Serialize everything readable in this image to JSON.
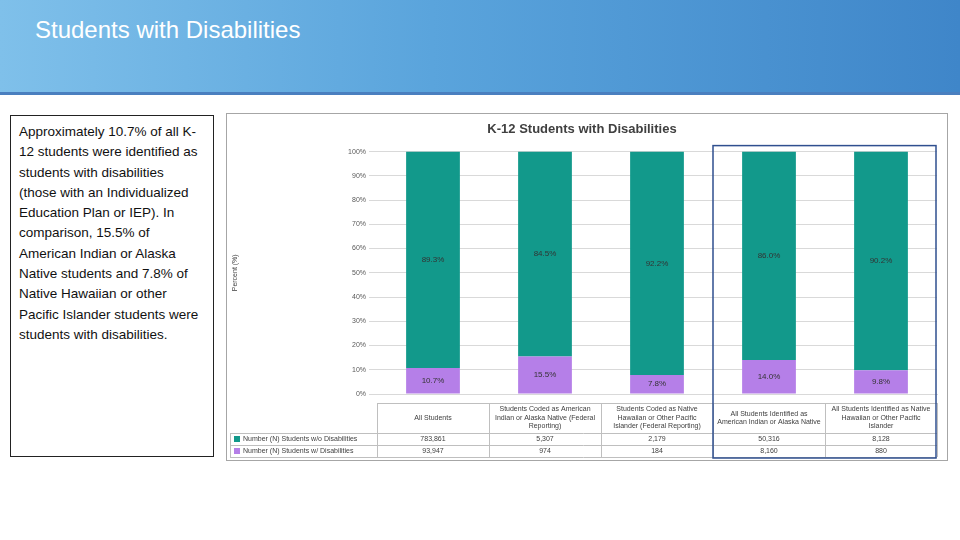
{
  "slide": {
    "title": "Students with Disabilities",
    "text": "Approximately 10.7% of all K-12 students were identified as students with disabilities (those with an Individualized Education Plan or IEP). In comparison, 15.5% of American Indian or Alaska Native students and 7.8% of Native Hawaiian or other Pacific Islander students were students with disabilities."
  },
  "chart_data": {
    "type": "bar",
    "stacked": true,
    "title": "K-12 Students with Disabilities",
    "y_label": "Percent (%)",
    "categories": [
      "All Students",
      "Students Coded as American Indian or Alaska Native (Federal Reporting)",
      "Students Coded as Native Hawaiian or Other Pacific Islander (Federal Reporting)",
      "All Students Identified as American Indian or Alaska Native",
      "All Students Identified as Native Hawaiian or Other Pacific Islander"
    ],
    "series": [
      {
        "name": "Number (N) Students w/o Disabilities",
        "color": "#12998b",
        "values": [
          89.3,
          84.5,
          92.2,
          86.0,
          90.2
        ],
        "value_labels": [
          "89.3%",
          "84.5%",
          "92.2%",
          "86.0%",
          "90.2%"
        ],
        "counts": [
          783861,
          5307,
          2179,
          50316,
          8128
        ],
        "count_labels": [
          "783,861",
          "5,307",
          "2,179",
          "50,316",
          "8,128"
        ]
      },
      {
        "name": "Number (N) Students w/ Disabilities",
        "color": "#b57fe8",
        "values": [
          10.7,
          15.5,
          7.8,
          14.0,
          9.8
        ],
        "value_labels": [
          "10.7%",
          "15.5%",
          "7.8%",
          "14.0%",
          "9.8%"
        ],
        "counts": [
          93947,
          974,
          184,
          8160,
          880
        ],
        "count_labels": [
          "93,947",
          "974",
          "184",
          "8,160",
          "880"
        ]
      }
    ],
    "ylim": [
      0,
      100
    ],
    "yticks": [
      {
        "value": 0,
        "label": "0%"
      },
      {
        "value": 10,
        "label": "10%"
      },
      {
        "value": 20,
        "label": "20%"
      },
      {
        "value": 30,
        "label": "30%"
      },
      {
        "value": 40,
        "label": "40%"
      },
      {
        "value": 50,
        "label": "50%"
      },
      {
        "value": 60,
        "label": "60%"
      },
      {
        "value": 70,
        "label": "70%"
      },
      {
        "value": 80,
        "label": "80%"
      },
      {
        "value": 90,
        "label": "90%"
      },
      {
        "value": 100,
        "label": "100%"
      }
    ],
    "grid": true,
    "data_labels": true
  }
}
